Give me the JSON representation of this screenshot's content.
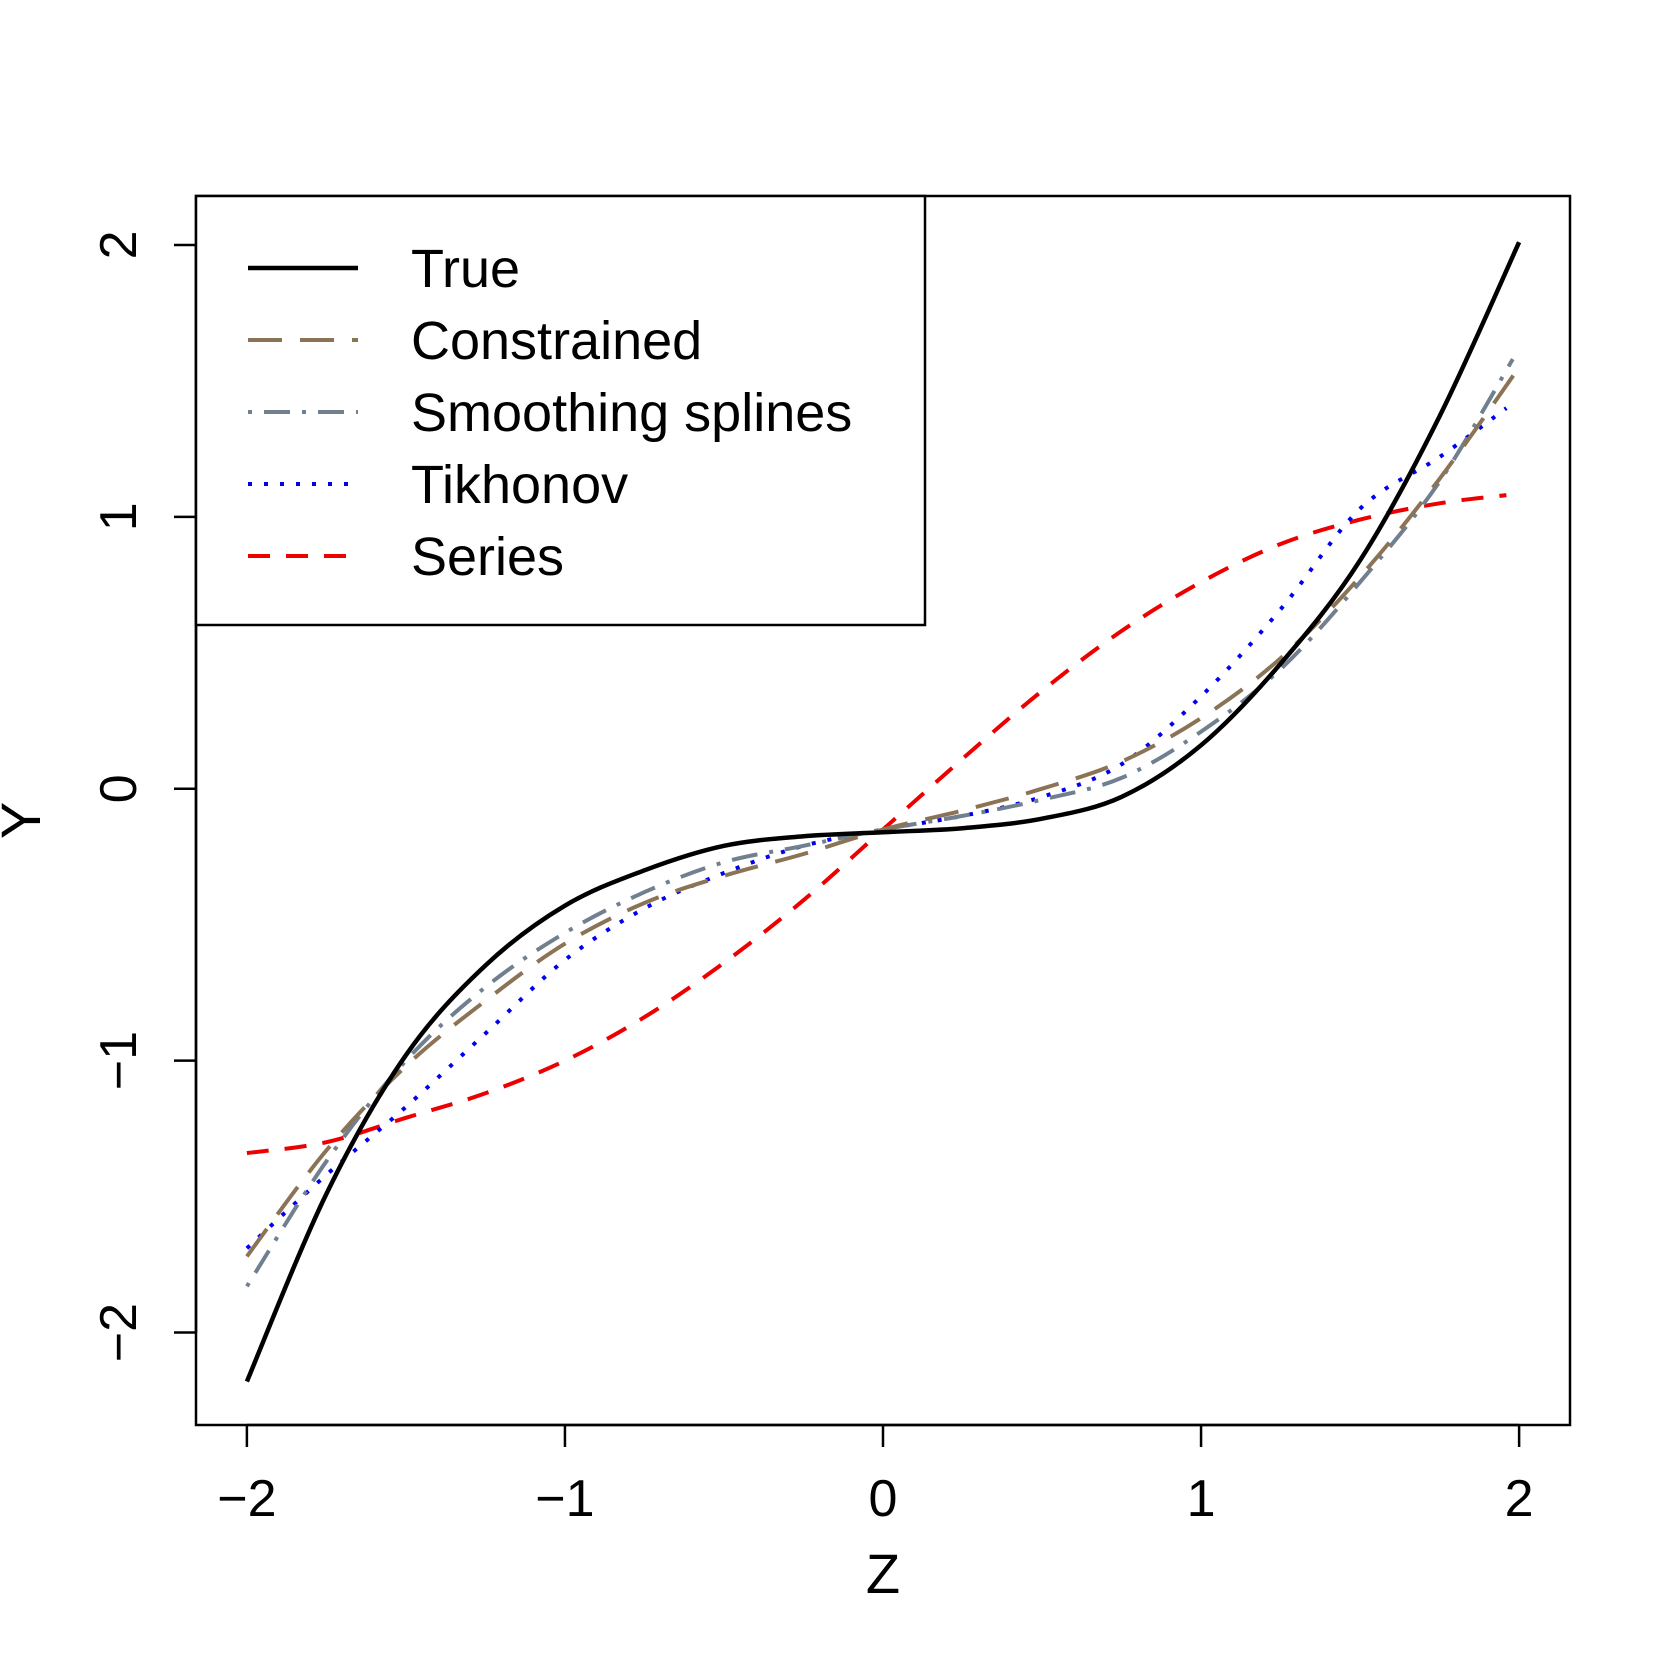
{
  "chart_data": {
    "type": "line",
    "title": "",
    "xlabel": "Z",
    "ylabel": "Y",
    "xlim": [
      -2.16,
      2.16
    ],
    "ylim": [
      -2.34,
      2.18
    ],
    "xticks": [
      -2,
      -1,
      0,
      1,
      2
    ],
    "xtick_labels": [
      "−2",
      "−1",
      "0",
      "1",
      "2"
    ],
    "yticks": [
      -2,
      -1,
      0,
      1,
      2
    ],
    "ytick_labels": [
      "−2",
      "−1",
      "0",
      "1",
      "2"
    ],
    "grid": false,
    "legend_position": "top-left",
    "series": [
      {
        "name": "True",
        "color": "#000000",
        "dash": "solid",
        "points": [
          [
            -2.0,
            -2.18
          ],
          [
            -1.75,
            -1.49
          ],
          [
            -1.5,
            -0.98
          ],
          [
            -1.25,
            -0.65
          ],
          [
            -1.0,
            -0.43
          ],
          [
            -0.75,
            -0.3
          ],
          [
            -0.5,
            -0.21
          ],
          [
            -0.25,
            -0.175
          ],
          [
            0.0,
            -0.16
          ],
          [
            0.25,
            -0.145
          ],
          [
            0.5,
            -0.11
          ],
          [
            0.75,
            -0.03
          ],
          [
            1.0,
            0.16
          ],
          [
            1.25,
            0.46
          ],
          [
            1.5,
            0.84
          ],
          [
            1.75,
            1.37
          ],
          [
            2.0,
            2.01
          ]
        ]
      },
      {
        "name": "Constrained",
        "color": "#8b7355",
        "dash": "long-dash",
        "points": [
          [
            -2.0,
            -1.72
          ],
          [
            -1.75,
            -1.33
          ],
          [
            -1.5,
            -1.02
          ],
          [
            -1.25,
            -0.78
          ],
          [
            -1.0,
            -0.57
          ],
          [
            -0.75,
            -0.42
          ],
          [
            -0.5,
            -0.32
          ],
          [
            -0.25,
            -0.24
          ],
          [
            0.0,
            -0.15
          ],
          [
            0.25,
            -0.08
          ],
          [
            0.5,
            0.0
          ],
          [
            0.75,
            0.1
          ],
          [
            1.0,
            0.26
          ],
          [
            1.25,
            0.48
          ],
          [
            1.5,
            0.78
          ],
          [
            1.75,
            1.14
          ],
          [
            2.0,
            1.55
          ]
        ]
      },
      {
        "name": "Smoothing splines",
        "color": "#708090",
        "dash": "dot-dash",
        "points": [
          [
            -2.0,
            -1.83
          ],
          [
            -1.75,
            -1.37
          ],
          [
            -1.5,
            -1.0
          ],
          [
            -1.25,
            -0.73
          ],
          [
            -1.0,
            -0.53
          ],
          [
            -0.75,
            -0.38
          ],
          [
            -0.5,
            -0.27
          ],
          [
            -0.25,
            -0.21
          ],
          [
            0.0,
            -0.15
          ],
          [
            0.25,
            -0.1
          ],
          [
            0.5,
            -0.04
          ],
          [
            0.75,
            0.04
          ],
          [
            1.0,
            0.21
          ],
          [
            1.25,
            0.44
          ],
          [
            1.5,
            0.76
          ],
          [
            1.75,
            1.13
          ],
          [
            1.98,
            1.58
          ]
        ]
      },
      {
        "name": "Tikhonov",
        "color": "#0000ee",
        "dash": "dotted",
        "points": [
          [
            -2.0,
            -1.69
          ],
          [
            -1.75,
            -1.42
          ],
          [
            -1.5,
            -1.17
          ],
          [
            -1.25,
            -0.9
          ],
          [
            -1.0,
            -0.63
          ],
          [
            -0.75,
            -0.44
          ],
          [
            -0.5,
            -0.31
          ],
          [
            -0.25,
            -0.21
          ],
          [
            0.0,
            -0.15
          ],
          [
            0.25,
            -0.1
          ],
          [
            0.5,
            -0.03
          ],
          [
            0.75,
            0.09
          ],
          [
            1.0,
            0.34
          ],
          [
            1.25,
            0.66
          ],
          [
            1.5,
            1.03
          ],
          [
            1.75,
            1.22
          ],
          [
            1.96,
            1.4
          ]
        ]
      },
      {
        "name": "Series",
        "color": "#ee0000",
        "dash": "dashed",
        "points": [
          [
            -2.0,
            -1.34
          ],
          [
            -1.75,
            -1.3
          ],
          [
            -1.5,
            -1.21
          ],
          [
            -1.25,
            -1.12
          ],
          [
            -1.0,
            -1.0
          ],
          [
            -0.75,
            -0.84
          ],
          [
            -0.5,
            -0.64
          ],
          [
            -0.25,
            -0.41
          ],
          [
            0.0,
            -0.15
          ],
          [
            0.25,
            0.11
          ],
          [
            0.5,
            0.36
          ],
          [
            0.75,
            0.58
          ],
          [
            1.0,
            0.76
          ],
          [
            1.25,
            0.9
          ],
          [
            1.5,
            0.99
          ],
          [
            1.75,
            1.05
          ],
          [
            1.96,
            1.08
          ]
        ]
      }
    ]
  }
}
